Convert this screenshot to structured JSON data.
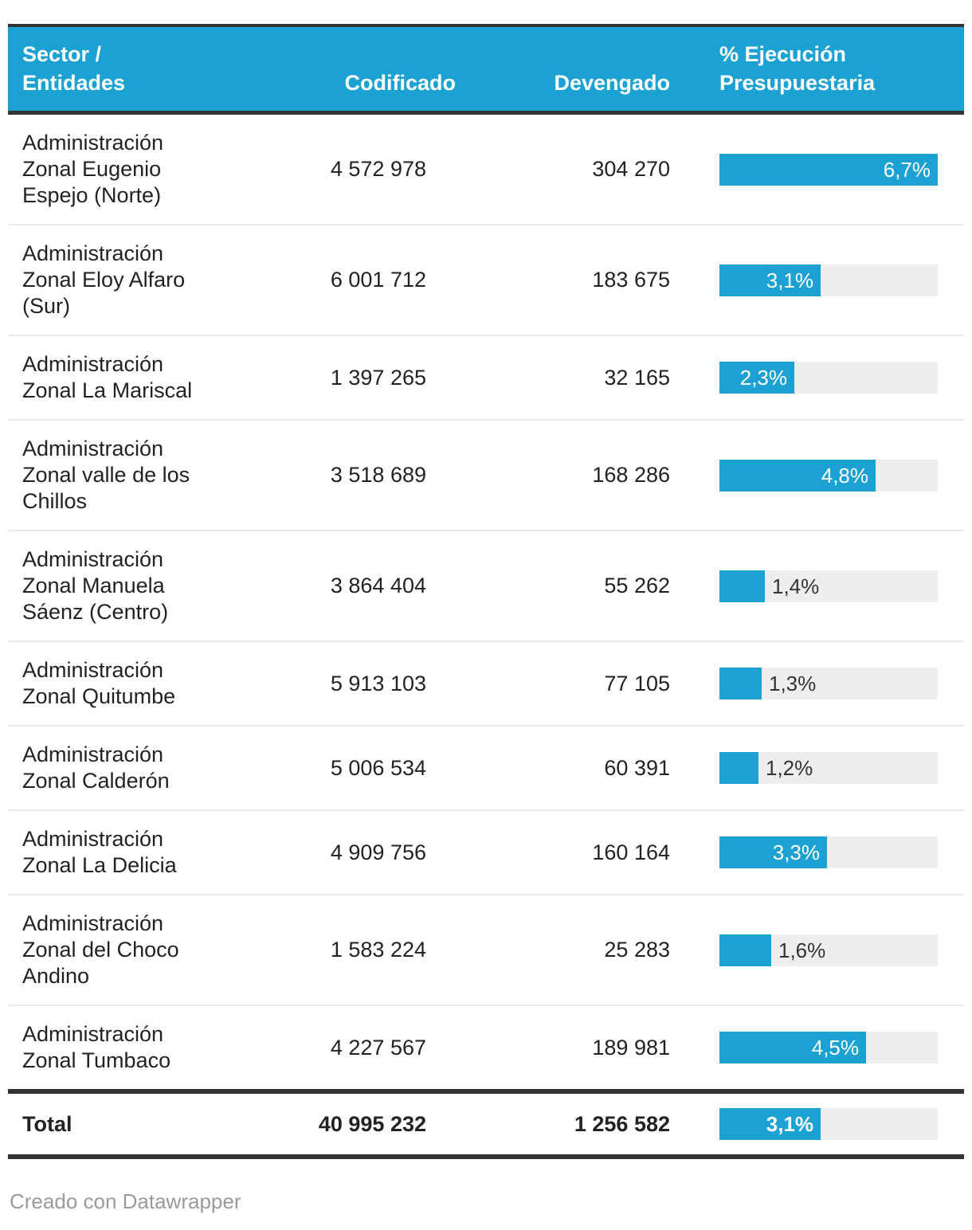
{
  "table": {
    "columns": [
      "Sector / Entidades",
      "Codificado",
      "Devengado",
      "% Ejecución Presupuestaria"
    ]
  },
  "rows": [
    {
      "name": "Administración Zonal Eugenio Espejo (Norte)",
      "codificado": "4 572 978",
      "devengado": "304 270",
      "pct_label": "6,7%",
      "pct": 6.7
    },
    {
      "name": "Administración Zonal Eloy Alfaro (Sur)",
      "codificado": "6 001 712",
      "devengado": "183 675",
      "pct_label": "3,1%",
      "pct": 3.1
    },
    {
      "name": "Administración Zonal La Mariscal",
      "codificado": "1 397 265",
      "devengado": "32 165",
      "pct_label": "2,3%",
      "pct": 2.3
    },
    {
      "name": "Administración Zonal valle de los Chillos",
      "codificado": "3 518 689",
      "devengado": "168 286",
      "pct_label": "4,8%",
      "pct": 4.8
    },
    {
      "name": "Administración Zonal Manuela Sáenz (Centro)",
      "codificado": "3 864 404",
      "devengado": "55 262",
      "pct_label": "1,4%",
      "pct": 1.4
    },
    {
      "name": "Administración Zonal Quitumbe",
      "codificado": "5 913 103",
      "devengado": "77 105",
      "pct_label": "1,3%",
      "pct": 1.3
    },
    {
      "name": "Administración Zonal Calderón",
      "codificado": "5 006 534",
      "devengado": "60 391",
      "pct_label": "1,2%",
      "pct": 1.2
    },
    {
      "name": "Administración Zonal La Delicia",
      "codificado": "4 909 756",
      "devengado": "160 164",
      "pct_label": "3,3%",
      "pct": 3.3
    },
    {
      "name": "Administración Zonal del Choco Andino",
      "codificado": "1 583 224",
      "devengado": "25 283",
      "pct_label": "1,6%",
      "pct": 1.6
    },
    {
      "name": "Administración Zonal Tumbaco",
      "codificado": "4 227 567",
      "devengado": "189 981",
      "pct_label": "4,5%",
      "pct": 4.5
    }
  ],
  "total": {
    "name": "Total",
    "codificado": "40 995 232",
    "devengado": "1 256 582",
    "pct_label": "3,1%",
    "pct": 3.1
  },
  "footer": {
    "credit": "Creado con Datawrapper"
  },
  "colors": {
    "accent": "#1BA2D2",
    "bar_track": "#EEEEEE",
    "border_dark": "#333333",
    "row_separator": "#EBEBEB",
    "header_text": "#FFFFFF",
    "body_text": "#222222",
    "credit_text": "#9A9A9A"
  },
  "chart_data": {
    "type": "table",
    "title": "",
    "columns": [
      "Sector / Entidades",
      "Codificado",
      "Devengado",
      "% Ejecución Presupuestaria"
    ],
    "rows": [
      [
        "Administración Zonal Eugenio Espejo (Norte)",
        4572978,
        304270,
        6.7
      ],
      [
        "Administración Zonal Eloy Alfaro (Sur)",
        6001712,
        183675,
        3.1
      ],
      [
        "Administración Zonal La Mariscal",
        1397265,
        32165,
        2.3
      ],
      [
        "Administración Zonal valle de los Chillos",
        3518689,
        168286,
        4.8
      ],
      [
        "Administración Zonal Manuela Sáenz (Centro)",
        3864404,
        55262,
        1.4
      ],
      [
        "Administración Zonal Quitumbe",
        5913103,
        77105,
        1.3
      ],
      [
        "Administración Zonal Calderón",
        5006534,
        60391,
        1.2
      ],
      [
        "Administración Zonal La Delicia",
        4909756,
        160164,
        3.3
      ],
      [
        "Administración Zonal del Choco Andino",
        1583224,
        25283,
        1.6
      ],
      [
        "Administración Zonal Tumbaco",
        4227567,
        189981,
        4.5
      ],
      [
        "Total",
        40995232,
        1256582,
        3.1
      ]
    ],
    "bar_column": "% Ejecución Presupuestaria",
    "bar_unit": "%",
    "bar_axis_max": 6.7,
    "bar_color": "#1BA2D2",
    "legend": "none",
    "grid": "off"
  }
}
